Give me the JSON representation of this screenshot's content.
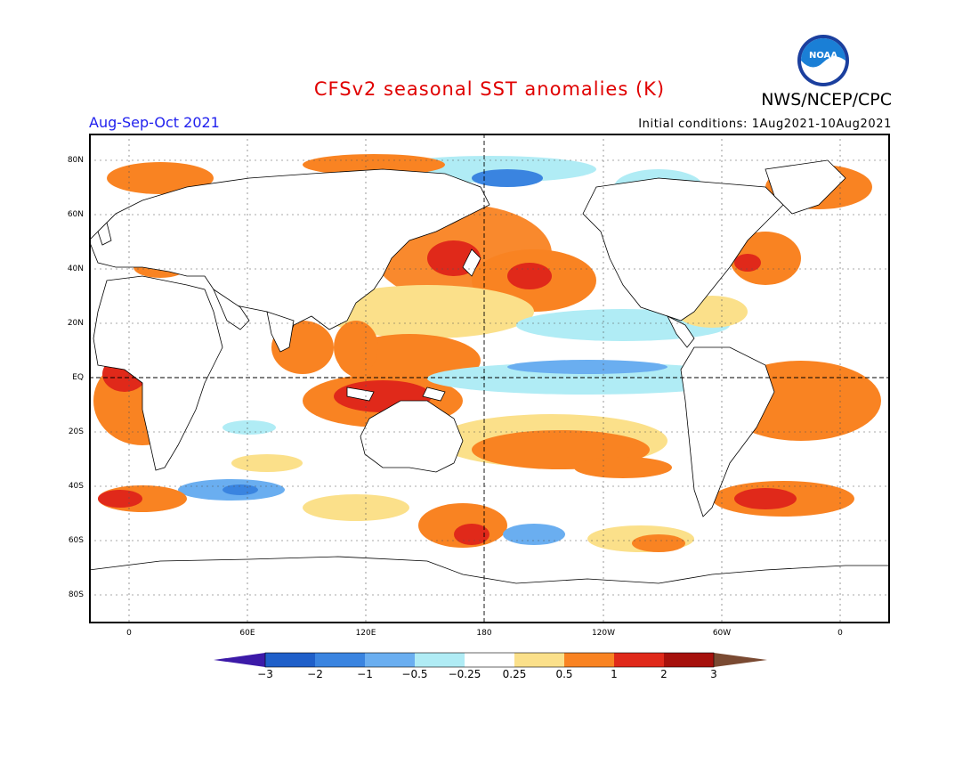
{
  "title": "CFSv2 seasonal SST anomalies (K)",
  "agency": "NWS/NCEP/CPC",
  "logo_text": "NOAA",
  "period": "Aug-Sep-Oct 2021",
  "initial_conditions": "Initial conditions: 1Aug2021-10Aug2021",
  "lat_labels": [
    "80N",
    "60N",
    "40N",
    "20N",
    "EQ",
    "20S",
    "40S",
    "60S",
    "80S"
  ],
  "lon_labels": [
    "0",
    "60E",
    "120E",
    "180",
    "120W",
    "60W",
    "0"
  ],
  "colorbar": {
    "labels": [
      "−3",
      "−2",
      "−1",
      "−0.5",
      "−0.25",
      "0.25",
      "0.5",
      "1",
      "2",
      "3"
    ],
    "colors": [
      "#3c1aa8",
      "#1f5fc9",
      "#3a84e0",
      "#6aaef0",
      "#b0ecf5",
      "#ffffff",
      "#fbe08a",
      "#f98322",
      "#e0291a",
      "#a6110c",
      "#7a4a32"
    ]
  },
  "colors": {
    "title": "#e00000",
    "period": "#2020ee",
    "land": "#ffffff",
    "coast": "#000000"
  }
}
